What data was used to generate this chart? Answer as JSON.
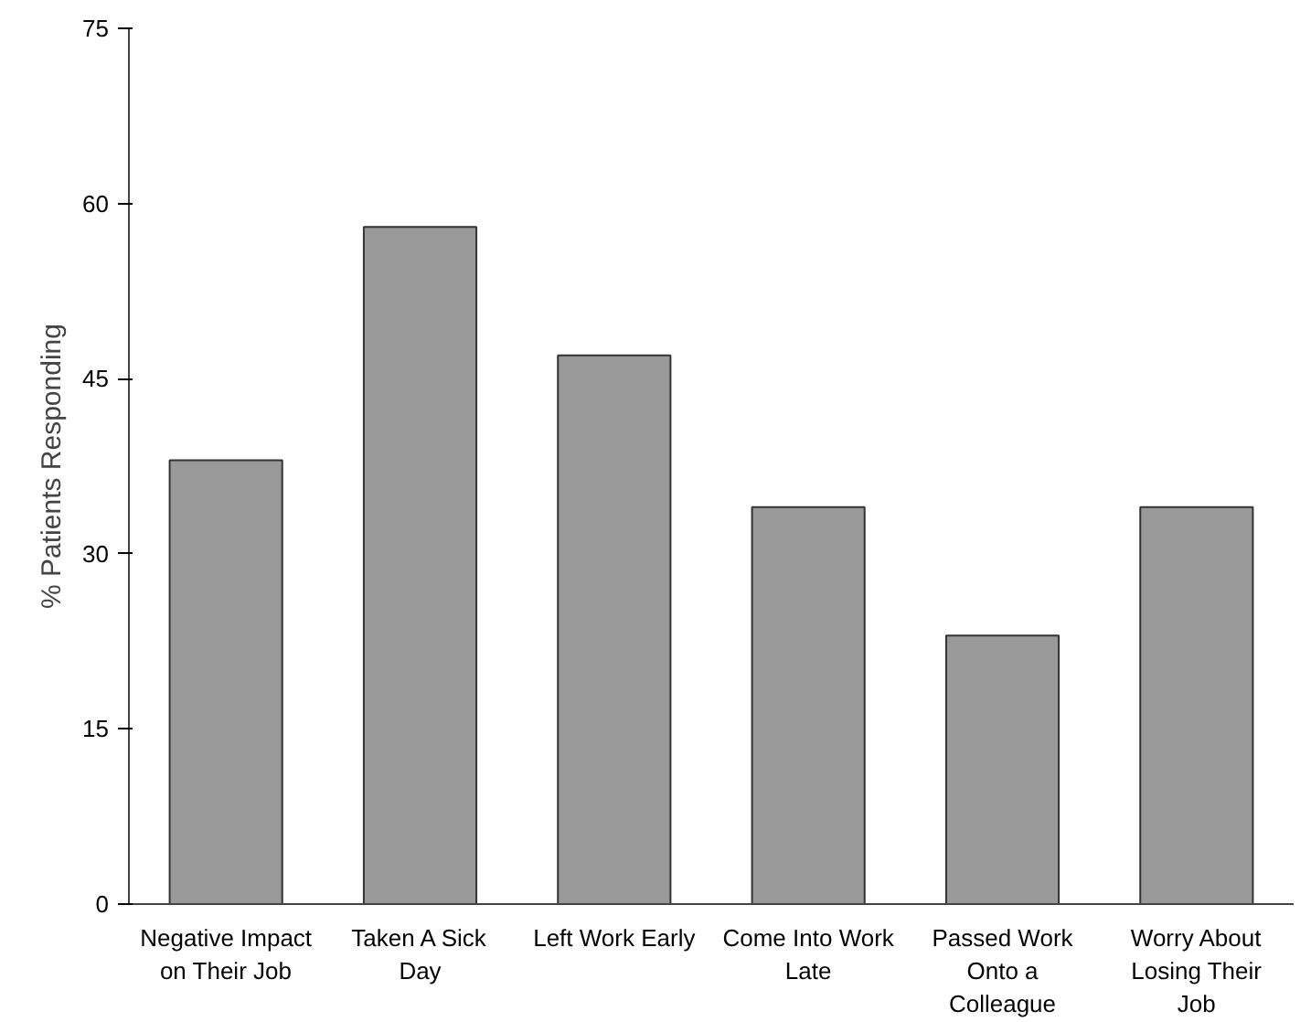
{
  "chart_data": {
    "type": "bar",
    "ylabel": "% Patients Responding",
    "categories": [
      "Negative Impact on Their Job",
      "Taken A Sick Day",
      "Left Work Early",
      "Come Into Work Late",
      "Passed Work Onto a Colleague",
      "Worry About Losing Their Job"
    ],
    "values": [
      38,
      58,
      47,
      34,
      23,
      34
    ],
    "color": "#999999",
    "ylim": [
      0,
      75
    ],
    "yticks": [
      0,
      15,
      30,
      45,
      60,
      75
    ],
    "grid": false
  }
}
